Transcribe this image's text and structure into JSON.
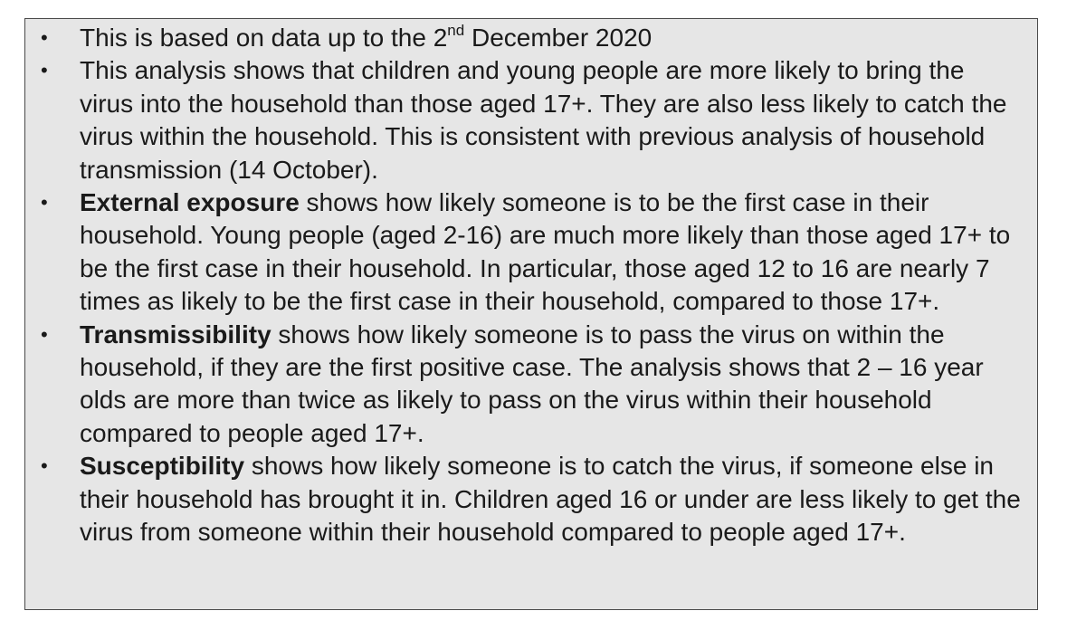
{
  "bullets": [
    {
      "pre": "This is based on data up to the 2",
      "sup": "nd",
      "post": " December 2020"
    },
    {
      "text": "This analysis shows that children and young people are more likely to bring the virus into the household than those aged 17+. They are also less likely to catch the virus within the household. This is consistent with previous analysis of household transmission (14 October)."
    },
    {
      "term": "External exposure",
      "text": " shows how likely someone is to be the first case in their household. Young people (aged 2-16) are much more likely than those aged 17+ to be the first case in their household. In particular, those aged 12 to 16 are nearly 7 times as likely to be the first case in their household, compared to those 17+."
    },
    {
      "term": "Transmissibility",
      "text": " shows how likely someone is to pass the virus on within the household, if they are the first positive case. The analysis shows that 2 – 16 year olds are more than twice as likely to pass on the virus within their household compared to people aged 17+."
    },
    {
      "term": "Susceptibility",
      "text": " shows how likely someone is to catch the virus, if someone else in their household has brought it in. Children aged 16 or under are less likely to get the virus from someone within their household compared to people aged 17+."
    }
  ],
  "bullet_glyph": "•"
}
